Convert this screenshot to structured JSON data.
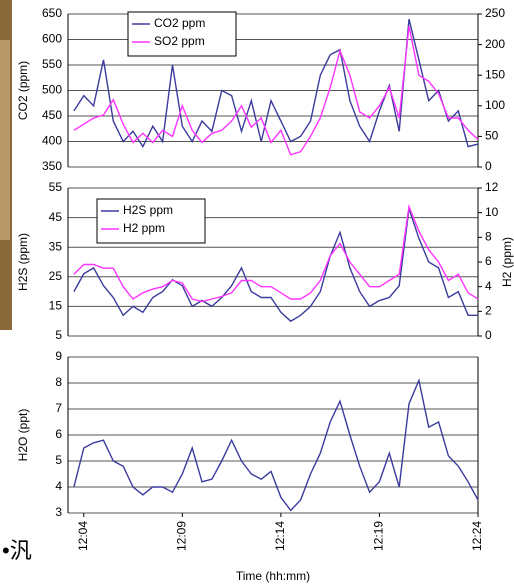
{
  "chart_data": [
    {
      "type": "line",
      "ylabel": "CO2 (ppm)",
      "grid": true,
      "legend": "upper left",
      "x": [
        723.5,
        724,
        724.5,
        725,
        725.5,
        726,
        726.5,
        727,
        727.5,
        728,
        728.5,
        729,
        729.5,
        730,
        730.5,
        731,
        731.5,
        732,
        732.5,
        733,
        733.5,
        734,
        734.5,
        735,
        735.5,
        736,
        736.5,
        737,
        737.5,
        738,
        738.5,
        739,
        739.5,
        740,
        740.5,
        741,
        741.5,
        742,
        742.5,
        743,
        743.5,
        744
      ],
      "xlim": [
        723.2,
        744
      ],
      "ylim": [
        350,
        650
      ],
      "yticks": [
        350,
        400,
        450,
        500,
        550,
        600,
        650
      ],
      "y2lim": [
        0,
        250
      ],
      "y2ticks": [
        0,
        50,
        100,
        150,
        200,
        250
      ],
      "series": [
        {
          "name": "CO2 ppm",
          "color": "#3b3b9e",
          "values": [
            460,
            490,
            470,
            560,
            440,
            400,
            420,
            390,
            430,
            400,
            550,
            430,
            400,
            440,
            420,
            500,
            490,
            420,
            480,
            400,
            480,
            440,
            400,
            410,
            440,
            530,
            570,
            580,
            480,
            430,
            400,
            460,
            510,
            420,
            640,
            560,
            480,
            500,
            440,
            460,
            390,
            395
          ]
        },
        {
          "name": "SO2 ppm",
          "color": "#ff33ff",
          "axis": "y2",
          "values": [
            60,
            70,
            80,
            85,
            110,
            70,
            40,
            55,
            40,
            60,
            50,
            100,
            60,
            40,
            55,
            60,
            75,
            100,
            65,
            80,
            40,
            60,
            20,
            25,
            50,
            80,
            130,
            190,
            150,
            90,
            80,
            100,
            130,
            80,
            230,
            150,
            140,
            120,
            80,
            80,
            60,
            45
          ]
        }
      ]
    },
    {
      "type": "line",
      "ylabel": "H2S (ppm)",
      "y2label": "H2 (ppm)",
      "grid": true,
      "legend": "upper left",
      "x": [
        723.5,
        724,
        724.5,
        725,
        725.5,
        726,
        726.5,
        727,
        727.5,
        728,
        728.5,
        729,
        729.5,
        730,
        730.5,
        731,
        731.5,
        732,
        732.5,
        733,
        733.5,
        734,
        734.5,
        735,
        735.5,
        736,
        736.5,
        737,
        737.5,
        738,
        738.5,
        739,
        739.5,
        740,
        740.5,
        741,
        741.5,
        742,
        742.5,
        743,
        743.5,
        744
      ],
      "xlim": [
        723.2,
        744
      ],
      "ylim": [
        5,
        55
      ],
      "yticks": [
        5,
        15,
        25,
        35,
        45,
        55
      ],
      "y2lim": [
        0,
        12
      ],
      "y2ticks": [
        0,
        2,
        4,
        6,
        8,
        10,
        12
      ],
      "series": [
        {
          "name": "H2S ppm",
          "color": "#3b3b9e",
          "values": [
            20,
            26,
            28,
            22,
            18,
            12,
            15,
            13,
            18,
            20,
            24,
            22,
            15,
            17,
            15,
            18,
            22,
            28,
            20,
            18,
            18,
            13,
            10,
            12,
            15,
            20,
            32,
            40,
            28,
            20,
            15,
            17,
            18,
            22,
            48,
            38,
            30,
            28,
            18,
            20,
            12,
            12
          ]
        },
        {
          "name": "H2 ppm",
          "color": "#ff33ff",
          "axis": "y2",
          "values": [
            5,
            5.8,
            5.8,
            5.5,
            5.5,
            4,
            3,
            3.5,
            3.8,
            4,
            4.5,
            4.3,
            3,
            2.8,
            3,
            3.2,
            3.5,
            4.5,
            4.5,
            4,
            4,
            3.5,
            3,
            3,
            3.5,
            4.5,
            6.5,
            7.5,
            6,
            5,
            4,
            4,
            4.5,
            5,
            10.5,
            8.5,
            7,
            6,
            4.5,
            5,
            3.5,
            3
          ]
        }
      ]
    },
    {
      "type": "line",
      "ylabel": "H2O (ppt)",
      "xlabel": "Time (hh:mm)",
      "grid": true,
      "x": [
        723.5,
        724,
        724.5,
        725,
        725.5,
        726,
        726.5,
        727,
        727.5,
        728,
        728.5,
        729,
        729.5,
        730,
        730.5,
        731,
        731.5,
        732,
        732.5,
        733,
        733.5,
        734,
        734.5,
        735,
        735.5,
        736,
        736.5,
        737,
        737.5,
        738,
        738.5,
        739,
        739.5,
        740,
        740.5,
        741,
        741.5,
        742,
        742.5,
        743,
        743.5,
        744
      ],
      "xlim": [
        723.2,
        744
      ],
      "ylim": [
        3,
        9
      ],
      "yticks": [
        3,
        4,
        5,
        6,
        7,
        8,
        9
      ],
      "xticks": [
        {
          "value": 724,
          "label": "12:04"
        },
        {
          "value": 729,
          "label": "12:09"
        },
        {
          "value": 734,
          "label": "12:14"
        },
        {
          "value": 739,
          "label": "12:19"
        },
        {
          "value": 744,
          "label": "12:24"
        }
      ],
      "series": [
        {
          "name": null,
          "color": "#3b3b9e",
          "values": [
            4,
            5.5,
            5.7,
            5.8,
            5,
            4.8,
            4,
            3.7,
            4,
            4,
            3.8,
            4.5,
            5.5,
            4.2,
            4.3,
            5,
            5.8,
            5,
            4.5,
            4.3,
            4.6,
            3.6,
            3.1,
            3.5,
            4.5,
            5.3,
            6.5,
            7.3,
            6,
            4.8,
            3.8,
            4.2,
            5.3,
            4,
            7.2,
            8.1,
            6.3,
            6.5,
            5.2,
            4.8,
            4.2,
            3.5
          ]
        }
      ]
    }
  ],
  "page_fragments": {
    "left_text": "•汎"
  }
}
